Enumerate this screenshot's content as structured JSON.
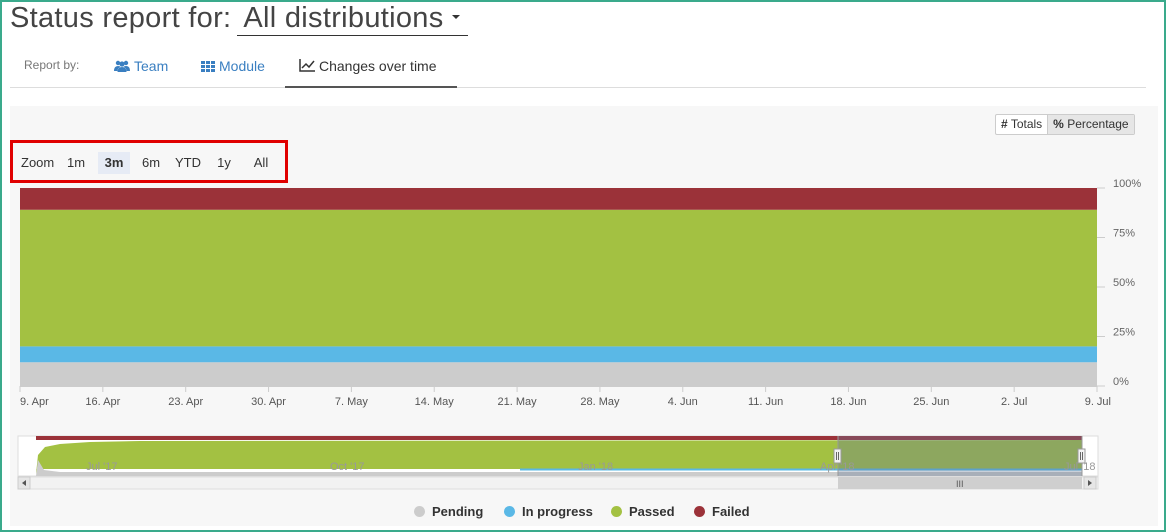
{
  "header": {
    "title_prefix": "Status report for:",
    "distribution": "All distributions"
  },
  "tabs": {
    "report_by_label": "Report by:",
    "items": [
      {
        "label": "Team",
        "icon": "users-icon"
      },
      {
        "label": "Module",
        "icon": "grid-icon"
      },
      {
        "label": "Changes over time",
        "icon": "line-chart-icon"
      }
    ],
    "active": "Changes over time"
  },
  "toggle": {
    "totals_symbol": "#",
    "totals_label": "Totals",
    "percentage_symbol": "%",
    "percentage_label": "Percentage",
    "active": "Percentage"
  },
  "zoom": {
    "label": "Zoom",
    "options": [
      "1m",
      "3m",
      "6m",
      "YTD",
      "1y",
      "All"
    ],
    "selected": "3m"
  },
  "colors": {
    "pending": "#cccccc",
    "in_progress": "#5ab8e6",
    "passed": "#a3c142",
    "failed": "#9b3239"
  },
  "chart_data": {
    "type": "area",
    "stacked": true,
    "normalized": "percent",
    "x": [
      "9. Apr",
      "16. Apr",
      "23. Apr",
      "30. Apr",
      "7. May",
      "14. May",
      "21. May",
      "28. May",
      "4. Jun",
      "11. Jun",
      "18. Jun",
      "25. Jun",
      "2. Jul",
      "9. Jul"
    ],
    "series": [
      {
        "name": "Pending",
        "values": [
          12,
          12,
          12,
          12,
          12,
          12,
          12,
          12,
          12,
          12,
          12,
          12,
          12,
          12
        ]
      },
      {
        "name": "In progress",
        "values": [
          8,
          8,
          8,
          8,
          8,
          8,
          8,
          8,
          8,
          8,
          8,
          8,
          8,
          8
        ]
      },
      {
        "name": "Passed",
        "values": [
          69,
          69,
          69,
          69,
          69,
          69,
          69,
          69,
          69,
          69,
          69,
          69,
          69,
          69
        ]
      },
      {
        "name": "Failed",
        "values": [
          11,
          11,
          11,
          11,
          11,
          11,
          11,
          11,
          11,
          11,
          11,
          11,
          11,
          11
        ]
      }
    ],
    "y_ticks": [
      "100%",
      "75%",
      "50%",
      "25%",
      "0%"
    ],
    "ylim": [
      0,
      100
    ],
    "y_axis_side": "right",
    "grid": false,
    "legend_position": "bottom",
    "navigator": {
      "x_labels": [
        "Jul '17",
        "Oct '17",
        "Jan '18",
        "Apr '18",
        "Jul '18"
      ],
      "selected_range": [
        "9. Apr",
        "9. Jul"
      ]
    }
  }
}
